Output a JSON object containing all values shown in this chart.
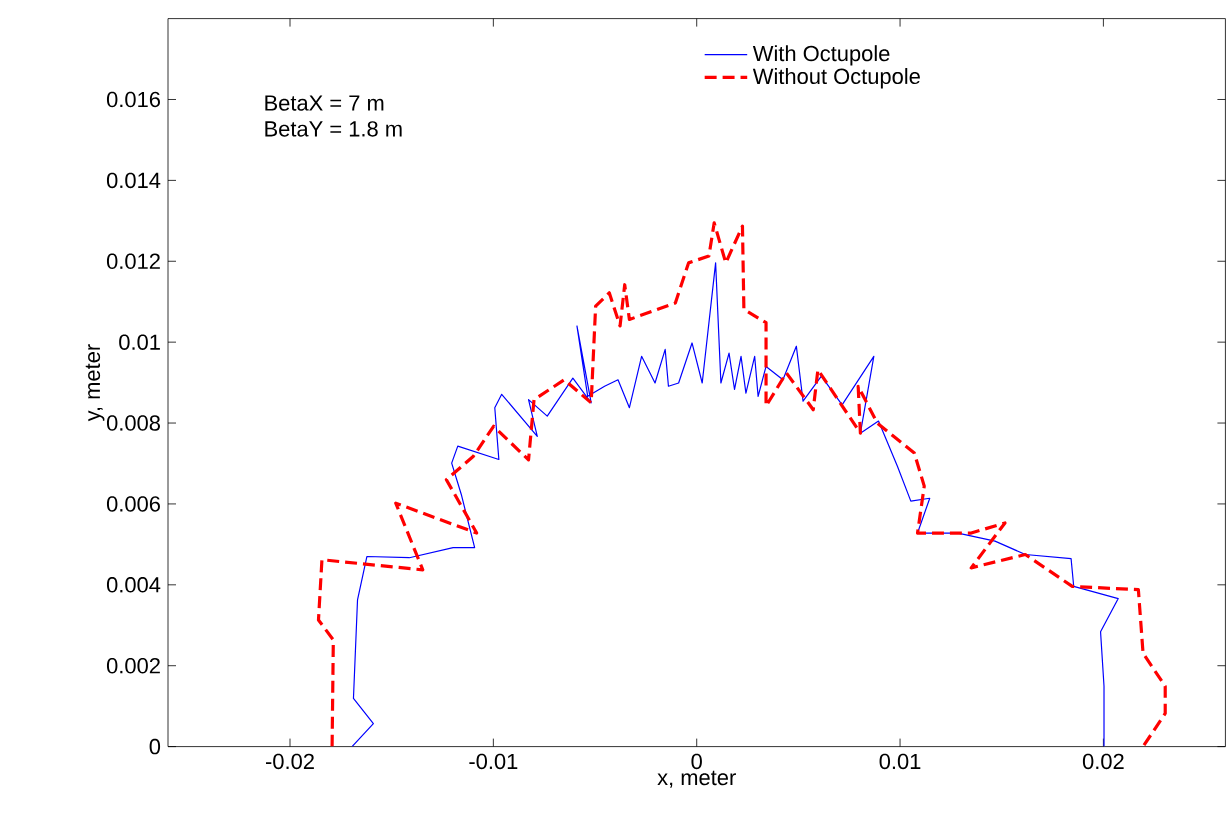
{
  "chart_data": {
    "type": "line",
    "xlabel": "x, meter",
    "ylabel": "y, meter",
    "annotations": [
      "BetaX = 7 m",
      "BetaY = 1.8 m"
    ],
    "xlim": [
      -0.026,
      0.026
    ],
    "ylim": [
      0,
      0.018
    ],
    "xticks": [
      -0.02,
      -0.01,
      0,
      0.01,
      0.02
    ],
    "yticks": [
      0,
      0.002,
      0.004,
      0.006,
      0.008,
      0.01,
      0.012,
      0.014,
      0.016
    ],
    "legend": "top right",
    "marker": "none",
    "series": [
      {
        "name": "With Octupole",
        "color": "#0000ff",
        "line_style": "solid",
        "x": [
          -0.01695,
          -0.0159,
          -0.01688,
          -0.01668,
          -0.01622,
          -0.01413,
          -0.01198,
          -0.01092,
          -0.01158,
          -0.01205,
          -0.01175,
          -0.00973,
          -0.00993,
          -0.00959,
          -0.00784,
          -0.00827,
          -0.00735,
          -0.00609,
          -0.00519,
          -0.00589,
          -0.00536,
          -0.00453,
          -0.00387,
          -0.00331,
          -0.00271,
          -0.00205,
          -0.00155,
          -0.00139,
          -0.00089,
          -0.00023,
          0.00027,
          0.00093,
          0.00119,
          0.00159,
          0.00186,
          0.00218,
          0.00242,
          0.00285,
          0.00302,
          0.00341,
          0.00424,
          0.0049,
          0.00523,
          0.00613,
          0.00715,
          0.00871,
          0.00805,
          0.00894,
          0.00987,
          0.01053,
          0.01146,
          0.01086,
          0.01285,
          0.01467,
          0.01616,
          0.01841,
          0.01854,
          0.02073,
          0.01986,
          0.02003,
          0.02003
        ],
        "values": [
          0,
          0.00057,
          0.00119,
          0.00363,
          0.0047,
          0.00467,
          0.00492,
          0.00492,
          0.00624,
          0.00701,
          0.00743,
          0.0071,
          0.00838,
          0.00871,
          0.00767,
          0.00858,
          0.00817,
          0.00911,
          0.0085,
          0.0104,
          0.00866,
          0.00891,
          0.00907,
          0.00838,
          0.00965,
          0.00899,
          0.00982,
          0.00891,
          0.00899,
          0.00998,
          0.00899,
          0.01196,
          0.00899,
          0.00973,
          0.00883,
          0.00965,
          0.00874,
          0.00965,
          0.00866,
          0.0094,
          0.00907,
          0.0099,
          0.00854,
          0.00916,
          0.00845,
          0.00965,
          0.00775,
          0.00805,
          0.00693,
          0.00607,
          0.00614,
          0.00528,
          0.00528,
          0.00508,
          0.00475,
          0.00465,
          0.00396,
          0.00366,
          0.00284,
          0.00149,
          0
        ]
      },
      {
        "name": "Without Octupole",
        "color": "#ff0000",
        "line_style": "dashed",
        "x": [
          -0.01793,
          -0.01787,
          -0.0186,
          -0.01843,
          -0.01347,
          -0.0148,
          -0.01082,
          -0.01231,
          -0.01098,
          -0.00999,
          -0.00827,
          -0.008,
          -0.00651,
          -0.00519,
          -0.00497,
          -0.0043,
          -0.00377,
          -0.00354,
          -0.00331,
          -0.00105,
          -0.0004,
          0.0006,
          0.00086,
          0.00143,
          0.00225,
          0.00232,
          0.00341,
          0.00341,
          0.00441,
          0.00573,
          0.00596,
          0.00805,
          0.00794,
          0.00888,
          0.0107,
          0.01119,
          0.01086,
          0.0135,
          0.01516,
          0.0135,
          0.01616,
          0.01847,
          0.02172,
          0.02195,
          0.02304,
          0.02304,
          0.02195
        ],
        "values": [
          0,
          0.00264,
          0.00313,
          0.00462,
          0.00437,
          0.00602,
          0.00528,
          0.0066,
          0.00718,
          0.00792,
          0.00709,
          0.00858,
          0.00907,
          0.0085,
          0.01089,
          0.01122,
          0.0104,
          0.01142,
          0.01056,
          0.01097,
          0.01196,
          0.01213,
          0.01295,
          0.01196,
          0.01287,
          0.01081,
          0.01048,
          0.00842,
          0.00924,
          0.00833,
          0.00932,
          0.00775,
          0.00891,
          0.008,
          0.00726,
          0.00644,
          0.00528,
          0.00528,
          0.00553,
          0.00442,
          0.00475,
          0.00396,
          0.00388,
          0.00231,
          0.00149,
          0.00082,
          0
        ]
      }
    ]
  }
}
